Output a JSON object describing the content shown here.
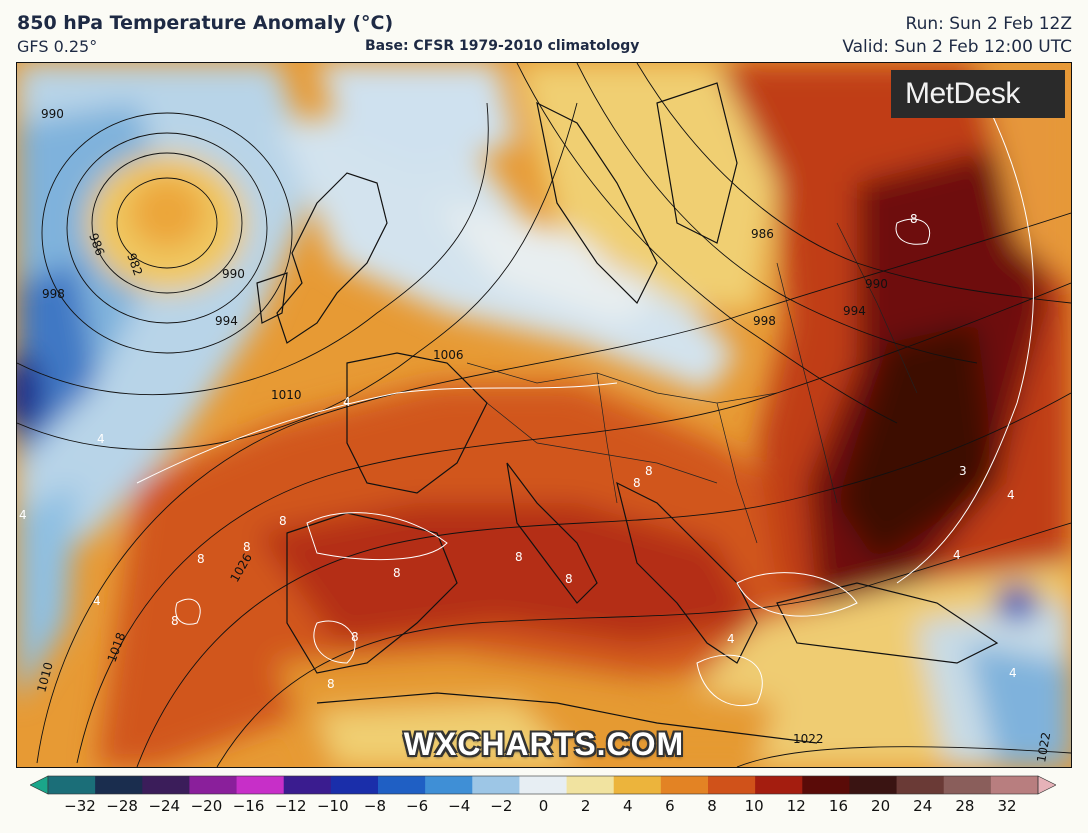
{
  "header": {
    "title": "850 hPa Temperature Anomaly (°C)",
    "model": "GFS 0.25°",
    "base": "Base: CFSR 1979-2010 climatology",
    "run": "Run: Sun 2 Feb 12Z",
    "valid": "Valid: Sun 2 Feb 12:00 UTC"
  },
  "logo": {
    "text": "MetDesk",
    "icon": "metdesk-pinwheel-icon"
  },
  "watermark": "WXCHARTS.COM",
  "map": {
    "region": "Europe",
    "isobar_labels": [
      "990",
      "986",
      "982",
      "990",
      "994",
      "998",
      "1010",
      "1006",
      "986",
      "990",
      "994",
      "998",
      "1026",
      "1018",
      "1010",
      "1022",
      "1022"
    ],
    "anomaly_labels": [
      "8",
      "8",
      "8",
      "8",
      "8",
      "8",
      "8",
      "8",
      "8",
      "8",
      "8",
      "4",
      "4",
      "4",
      "4",
      "4",
      "4",
      "8",
      "3",
      "4",
      "4"
    ]
  },
  "colorbar": {
    "ticks": [
      "−32",
      "−28",
      "−24",
      "−20",
      "−16",
      "−12",
      "−10",
      "−8",
      "−6",
      "−4",
      "−2",
      "0",
      "2",
      "4",
      "6",
      "8",
      "10",
      "12",
      "16",
      "20",
      "24",
      "28",
      "32"
    ],
    "colors": [
      "#1aa68a",
      "#1b6e78",
      "#1a2d4e",
      "#3b1d5a",
      "#8a1f9b",
      "#c72fc8",
      "#3a1c8f",
      "#1a2eaa",
      "#1f5fc4",
      "#3f8fd6",
      "#9dc6e6",
      "#e7eef3",
      "#f1e3a0",
      "#ecb43c",
      "#e38324",
      "#d0521a",
      "#a41d0f",
      "#5a0b08",
      "#3a1412",
      "#6a3a36",
      "#8a5e5b",
      "#b87e7f",
      "#e6b2b8"
    ]
  }
}
